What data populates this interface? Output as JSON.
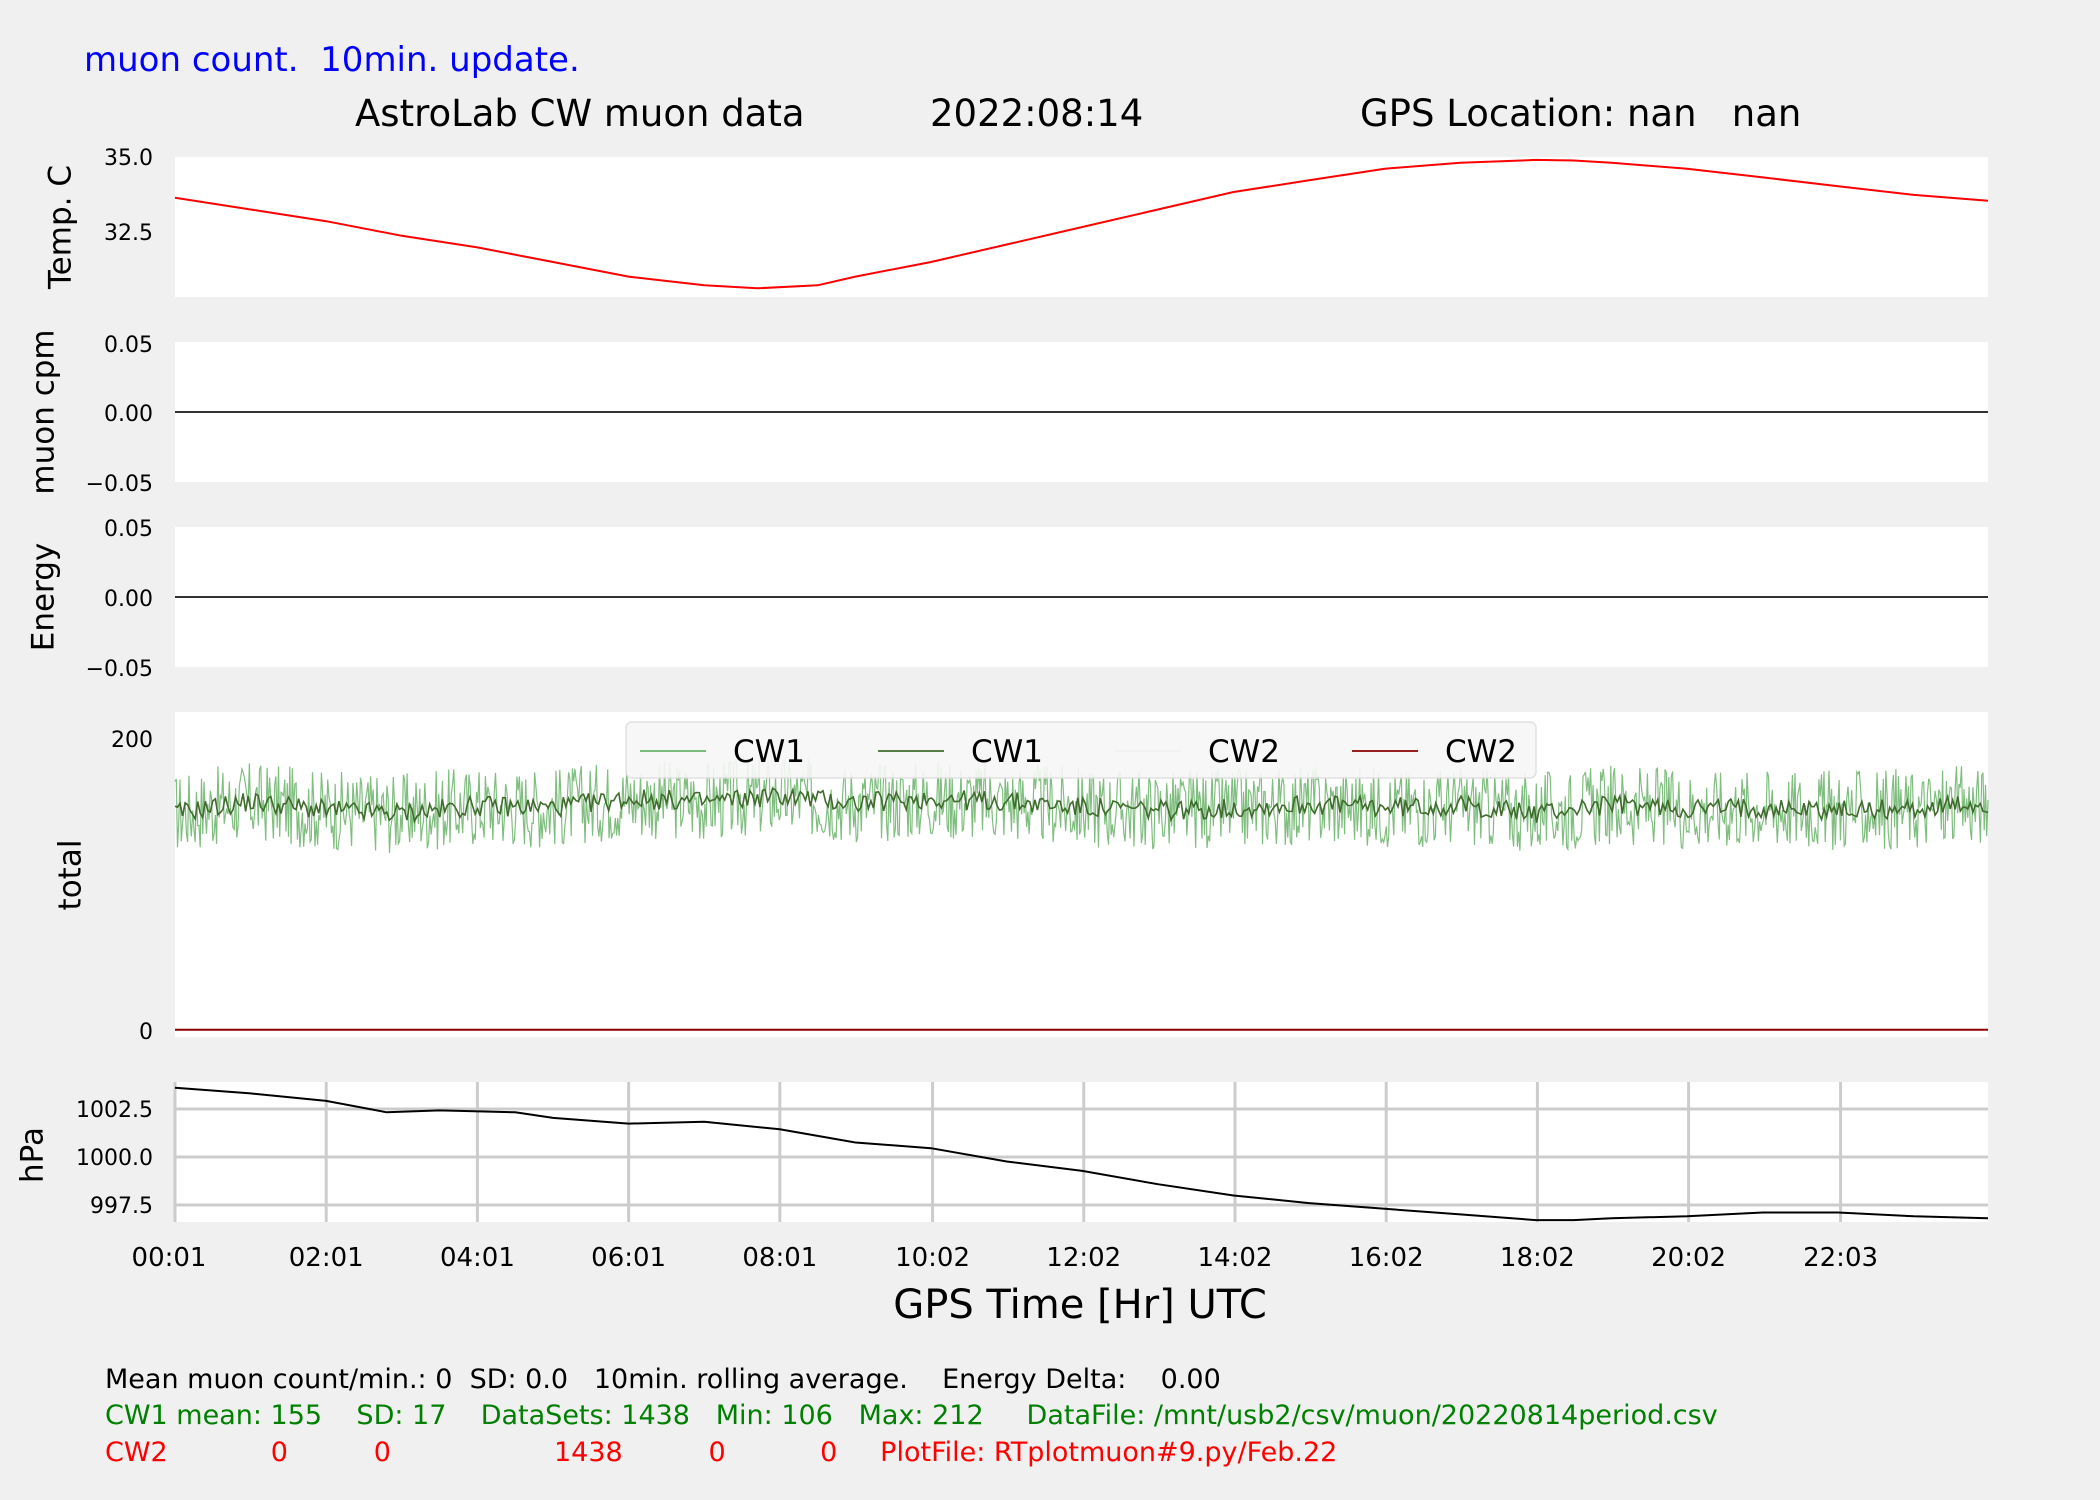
{
  "header": {
    "update_note": "muon count.  10min. update.",
    "title_left": "AstroLab CW muon data",
    "title_date": "2022:08:14",
    "title_gps": "GPS Location: nan   nan"
  },
  "colors": {
    "note": "#0000ff",
    "temp": "#ff0000",
    "cw1_raw": "#6ab36a",
    "cw1_avg": "#3f6b2c",
    "cw2": "#8b0000",
    "pressure": "#000000",
    "stats_green": "#008000",
    "stats_red": "#ff0000"
  },
  "chart_data": [
    {
      "type": "line",
      "panel": "temperature",
      "ylabel": "Temp. C",
      "yticks": [
        "35.0",
        "32.5"
      ],
      "ylim": [
        30.3,
        35.1
      ],
      "series": [
        {
          "color": "#ff0000",
          "points": [
            [
              0.0,
              33.7
            ],
            [
              1.0,
              33.3
            ],
            [
              2.0,
              32.9
            ],
            [
              3.0,
              32.4
            ],
            [
              4.0,
              32.0
            ],
            [
              5.0,
              31.5
            ],
            [
              6.0,
              31.0
            ],
            [
              7.0,
              30.7
            ],
            [
              7.7,
              30.6
            ],
            [
              8.5,
              30.7
            ],
            [
              9.0,
              31.0
            ],
            [
              10.0,
              31.5
            ],
            [
              11.0,
              32.1
            ],
            [
              12.0,
              32.7
            ],
            [
              13.0,
              33.3
            ],
            [
              14.0,
              33.9
            ],
            [
              15.0,
              34.3
            ],
            [
              16.0,
              34.7
            ],
            [
              17.0,
              34.9
            ],
            [
              18.0,
              35.0
            ],
            [
              18.5,
              34.98
            ],
            [
              19.0,
              34.9
            ],
            [
              20.0,
              34.7
            ],
            [
              21.0,
              34.4
            ],
            [
              22.0,
              34.1
            ],
            [
              23.0,
              33.8
            ],
            [
              23.98,
              33.6
            ]
          ]
        }
      ]
    },
    {
      "type": "line",
      "panel": "muon_cpm",
      "ylabel": "muon cpm",
      "yticks": [
        "0.05",
        "0.00",
        "−0.05"
      ],
      "ylim": [
        -0.05,
        0.05
      ],
      "series": [
        {
          "color": "#333333",
          "points": [
            [
              0.0,
              0.0
            ],
            [
              23.98,
              0.0
            ]
          ]
        }
      ]
    },
    {
      "type": "line",
      "panel": "energy",
      "ylabel": "Energy",
      "yticks": [
        "0.05",
        "0.00",
        "−0.05"
      ],
      "ylim": [
        -0.05,
        0.05
      ],
      "series": [
        {
          "color": "#333333",
          "points": [
            [
              0.0,
              0.0
            ],
            [
              23.98,
              0.0
            ]
          ]
        }
      ]
    },
    {
      "type": "line",
      "panel": "total",
      "ylabel": "total",
      "yticks": [
        "200",
        "0"
      ],
      "ylim": [
        -5,
        220
      ],
      "legend": [
        "CW1",
        "CW1",
        "CW2",
        "CW2"
      ],
      "legend_position": "top-center",
      "series": [
        {
          "name": "CW1",
          "color": "#6ab36a",
          "points": [
            [
              0.0,
              150
            ],
            [
              1.0,
              158
            ],
            [
              2.0,
              152
            ],
            [
              3.0,
              150
            ],
            [
              4.0,
              155
            ],
            [
              5.0,
              154
            ],
            [
              6.0,
              160
            ],
            [
              7.0,
              158
            ],
            [
              8.0,
              162
            ],
            [
              9.0,
              157
            ],
            [
              10.0,
              160
            ],
            [
              11.0,
              158
            ],
            [
              12.0,
              154
            ],
            [
              13.0,
              152
            ],
            [
              14.0,
              153
            ],
            [
              15.0,
              156
            ],
            [
              16.0,
              154
            ],
            [
              17.0,
              155
            ],
            [
              18.0,
              150
            ],
            [
              19.0,
              156
            ],
            [
              20.0,
              153
            ],
            [
              21.0,
              154
            ],
            [
              22.0,
              152
            ],
            [
              23.0,
              153
            ],
            [
              23.98,
              156
            ]
          ]
        },
        {
          "name": "CW1",
          "color": "#3f6b2c",
          "points": [
            [
              0.0,
              150
            ],
            [
              1.0,
              158
            ],
            [
              2.0,
              152
            ],
            [
              3.0,
              150
            ],
            [
              4.0,
              155
            ],
            [
              5.0,
              154
            ],
            [
              6.0,
              160
            ],
            [
              7.0,
              158
            ],
            [
              8.0,
              162
            ],
            [
              9.0,
              157
            ],
            [
              10.0,
              160
            ],
            [
              11.0,
              158
            ],
            [
              12.0,
              154
            ],
            [
              13.0,
              152
            ],
            [
              14.0,
              153
            ],
            [
              15.0,
              156
            ],
            [
              16.0,
              154
            ],
            [
              17.0,
              155
            ],
            [
              18.0,
              150
            ],
            [
              19.0,
              156
            ],
            [
              20.0,
              153
            ],
            [
              21.0,
              154
            ],
            [
              22.0,
              152
            ],
            [
              23.0,
              153
            ],
            [
              23.98,
              156
            ]
          ]
        },
        {
          "name": "CW2",
          "color": "#ffffff",
          "points": [
            [
              0.0,
              0
            ],
            [
              23.98,
              0
            ]
          ]
        },
        {
          "name": "CW2",
          "color": "#8b0000",
          "points": [
            [
              0.0,
              0
            ],
            [
              23.98,
              0
            ]
          ]
        }
      ]
    },
    {
      "type": "line",
      "panel": "pressure",
      "ylabel": "hPa",
      "yticks": [
        "1002.5",
        "1000.0",
        "997.5"
      ],
      "ylim": [
        996.6,
        1004.0
      ],
      "grid": true,
      "xlabel": "GPS Time  [Hr] UTC",
      "xticks": [
        "00:01",
        "02:01",
        "04:01",
        "06:01",
        "08:01",
        "10:02",
        "12:02",
        "14:02",
        "16:02",
        "18:02",
        "20:02",
        "22:03"
      ],
      "series": [
        {
          "color": "#000000",
          "points": [
            [
              0.0,
              1003.7
            ],
            [
              1.0,
              1003.4
            ],
            [
              2.0,
              1003.0
            ],
            [
              2.8,
              1002.4
            ],
            [
              3.5,
              1002.5
            ],
            [
              4.5,
              1002.4
            ],
            [
              5.0,
              1002.1
            ],
            [
              6.0,
              1001.8
            ],
            [
              7.0,
              1001.9
            ],
            [
              8.0,
              1001.5
            ],
            [
              9.0,
              1000.8
            ],
            [
              10.0,
              1000.5
            ],
            [
              11.0,
              999.8
            ],
            [
              12.0,
              999.3
            ],
            [
              13.0,
              998.6
            ],
            [
              14.0,
              998.0
            ],
            [
              15.0,
              997.6
            ],
            [
              16.0,
              997.3
            ],
            [
              17.0,
              997.0
            ],
            [
              18.0,
              996.7
            ],
            [
              18.5,
              996.7
            ],
            [
              19.0,
              996.8
            ],
            [
              20.0,
              996.9
            ],
            [
              21.0,
              997.1
            ],
            [
              22.0,
              997.1
            ],
            [
              23.0,
              996.9
            ],
            [
              23.98,
              996.8
            ]
          ]
        }
      ]
    }
  ],
  "footer": {
    "line1": "Mean muon count/min.: 0  SD: 0.0   10min. rolling average.    Energy Delta:    0.00",
    "line2": "CW1 mean: 155    SD: 17    DataSets: 1438   Min: 106   Max: 212     DataFile: /mnt/usb2/csv/muon/20220814period.csv",
    "line3": "CW2            0          0                   1438          0           0     PlotFile: RTplotmuon#9.py/Feb.22"
  }
}
